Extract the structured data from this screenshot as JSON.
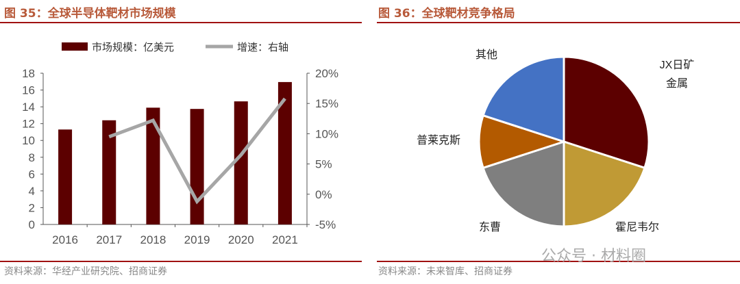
{
  "left": {
    "title": "图 35：全球半导体靶材市场规模",
    "source": "资料来源：华经产业研究院、招商证券"
  },
  "right": {
    "title": "图 36：全球靶材竞争格局",
    "source": "资料来源：未来智库、招商证券"
  },
  "watermark": "公众号 · 材料圈",
  "chart_data": [
    {
      "type": "bar+line",
      "categories": [
        "2016",
        "2017",
        "2018",
        "2019",
        "2020",
        "2021"
      ],
      "series": [
        {
          "name": "市场规模：亿美元",
          "type": "bar",
          "axis": "left",
          "color": "#5c0000",
          "values": [
            11.3,
            12.4,
            13.9,
            13.75,
            14.65,
            16.95
          ]
        },
        {
          "name": "增速：右轴",
          "type": "line",
          "axis": "right",
          "color": "#a6a6a6",
          "values": [
            null,
            9.5,
            12.2,
            -1.2,
            6.5,
            15.8
          ]
        }
      ],
      "ylim": [
        0,
        18
      ],
      "yticks": [
        "0",
        "2",
        "4",
        "6",
        "8",
        "10",
        "12",
        "14",
        "16",
        "18"
      ],
      "y2lim": [
        -5,
        20
      ],
      "y2ticks": [
        "-5%",
        "0%",
        "5%",
        "10%",
        "15%",
        "20%"
      ],
      "legend": "top",
      "grid": false
    },
    {
      "type": "pie",
      "labels": [
        "JX日矿金属",
        "霍尼韦尔",
        "东曹",
        "普莱克斯",
        "其他"
      ],
      "values": [
        30,
        20,
        20,
        10,
        20
      ],
      "colors": [
        "#5c0000",
        "#c09a35",
        "#7f7f7f",
        "#b35a00",
        "#4472c4"
      ]
    }
  ]
}
